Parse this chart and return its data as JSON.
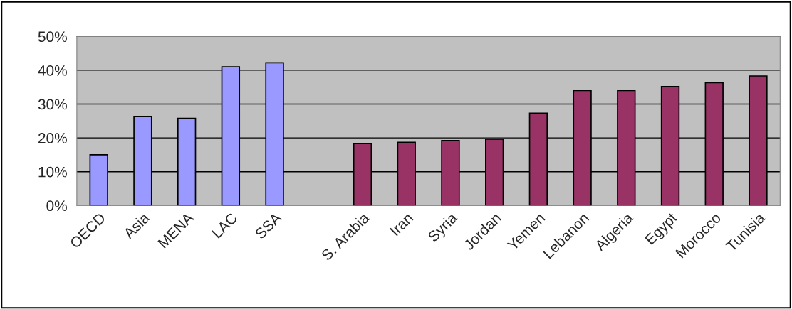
{
  "chart_data": {
    "type": "bar",
    "categories": [
      "OECD",
      "Asia",
      "MENA",
      "LAC",
      "SSA",
      null,
      "S. Arabia",
      "Iran",
      "Syria",
      "Jordan",
      "Yemen",
      "Lebanon",
      "Algeria",
      "Egypt",
      "Morocco",
      "Tunisia"
    ],
    "values": [
      15,
      26.3,
      25.8,
      41,
      42.2,
      null,
      18.3,
      18.7,
      19.2,
      19.6,
      27.3,
      34,
      34,
      35.2,
      36.3,
      38.3
    ],
    "colors": [
      "#9999ff",
      "#9999ff",
      "#9999ff",
      "#9999ff",
      "#9999ff",
      null,
      "#993366",
      "#993366",
      "#993366",
      "#993366",
      "#993366",
      "#993366",
      "#993366",
      "#993366",
      "#993366",
      "#993366"
    ],
    "ylim": [
      0,
      50
    ],
    "yticks": [
      {
        "value": 0,
        "label": "0%"
      },
      {
        "value": 10,
        "label": "10%"
      },
      {
        "value": 20,
        "label": "20%"
      },
      {
        "value": 30,
        "label": "30%"
      },
      {
        "value": 40,
        "label": "40%"
      },
      {
        "value": 50,
        "label": "50%"
      }
    ],
    "grid": "y",
    "legend": false
  }
}
